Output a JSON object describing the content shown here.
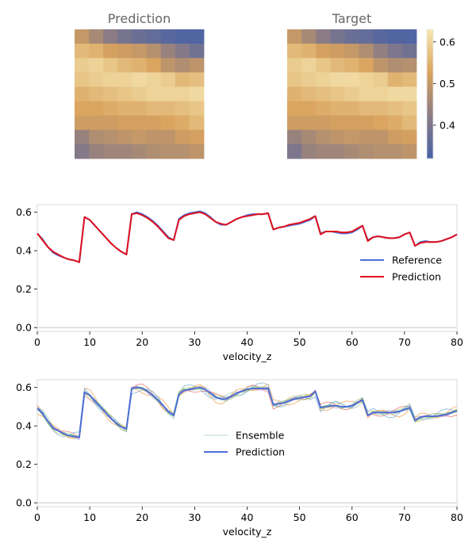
{
  "colors": {
    "reference": "#4c6ed4",
    "prediction_mid": "#e0101e",
    "prediction_bottom": "#4c6ed4",
    "frame": "#d9d9d9",
    "zero_line": "#bfbfbf",
    "title": "#666666"
  },
  "chart_data": [
    {
      "type": "heatmap",
      "title": "Prediction",
      "rows": 9,
      "cols": 9,
      "colormap": [
        "#4b63a6",
        "#8c7c84",
        "#d9a35d",
        "#f6e6b1"
      ],
      "vmin": 0.32,
      "vmax": 0.63,
      "values": [
        [
          0.5,
          0.46,
          0.42,
          0.39,
          0.37,
          0.36,
          0.34,
          0.33,
          0.33
        ],
        [
          0.56,
          0.55,
          0.52,
          0.51,
          0.5,
          0.48,
          0.44,
          0.41,
          0.38
        ],
        [
          0.59,
          0.6,
          0.58,
          0.56,
          0.55,
          0.53,
          0.49,
          0.47,
          0.49
        ],
        [
          0.58,
          0.59,
          0.6,
          0.6,
          0.61,
          0.6,
          0.59,
          0.56,
          0.57
        ],
        [
          0.55,
          0.56,
          0.57,
          0.58,
          0.59,
          0.6,
          0.6,
          0.6,
          0.61
        ],
        [
          0.53,
          0.53,
          0.54,
          0.55,
          0.55,
          0.56,
          0.56,
          0.57,
          0.58
        ],
        [
          0.51,
          0.51,
          0.51,
          0.52,
          0.52,
          0.52,
          0.53,
          0.54,
          0.56
        ],
        [
          0.44,
          0.47,
          0.48,
          0.49,
          0.5,
          0.49,
          0.49,
          0.51,
          0.52
        ],
        [
          0.41,
          0.44,
          0.45,
          0.45,
          0.46,
          0.47,
          0.48,
          0.48,
          0.49
        ]
      ]
    },
    {
      "type": "heatmap",
      "title": "Target",
      "rows": 9,
      "cols": 9,
      "colormap": [
        "#4b63a6",
        "#8c7c84",
        "#d9a35d",
        "#f6e6b1"
      ],
      "vmin": 0.32,
      "vmax": 0.63,
      "colorbar_ticks": [
        0.4,
        0.5,
        0.6
      ],
      "values": [
        [
          0.5,
          0.46,
          0.42,
          0.39,
          0.37,
          0.36,
          0.34,
          0.33,
          0.33
        ],
        [
          0.56,
          0.55,
          0.52,
          0.51,
          0.5,
          0.47,
          0.43,
          0.4,
          0.38
        ],
        [
          0.59,
          0.6,
          0.58,
          0.56,
          0.55,
          0.53,
          0.49,
          0.47,
          0.48
        ],
        [
          0.58,
          0.59,
          0.6,
          0.61,
          0.61,
          0.6,
          0.59,
          0.55,
          0.56
        ],
        [
          0.55,
          0.56,
          0.57,
          0.58,
          0.59,
          0.6,
          0.6,
          0.61,
          0.61
        ],
        [
          0.53,
          0.53,
          0.54,
          0.55,
          0.55,
          0.56,
          0.56,
          0.57,
          0.58
        ],
        [
          0.51,
          0.51,
          0.51,
          0.52,
          0.52,
          0.52,
          0.53,
          0.54,
          0.56
        ],
        [
          0.44,
          0.46,
          0.48,
          0.49,
          0.5,
          0.49,
          0.49,
          0.51,
          0.52
        ],
        [
          0.4,
          0.44,
          0.45,
          0.45,
          0.46,
          0.47,
          0.48,
          0.48,
          0.49
        ]
      ]
    },
    {
      "type": "line",
      "xlabel": "velocity_z",
      "xlim": [
        0,
        80
      ],
      "ylim": [
        -0.02,
        0.64
      ],
      "xticks": [
        0,
        10,
        20,
        30,
        40,
        50,
        60,
        70,
        80
      ],
      "yticks": [
        0.0,
        0.2,
        0.4,
        0.6
      ],
      "legend_position": "center-right",
      "x": [
        0,
        1,
        2,
        3,
        4,
        5,
        6,
        7,
        8,
        9,
        10,
        11,
        12,
        13,
        14,
        15,
        16,
        17,
        18,
        19,
        20,
        21,
        22,
        23,
        24,
        25,
        26,
        27,
        28,
        29,
        30,
        31,
        32,
        33,
        34,
        35,
        36,
        37,
        38,
        39,
        40,
        41,
        42,
        43,
        44,
        45,
        46,
        47,
        48,
        49,
        50,
        51,
        52,
        53,
        54,
        55,
        56,
        57,
        58,
        59,
        60,
        61,
        62,
        63,
        64,
        65,
        66,
        67,
        68,
        69,
        70,
        71,
        72,
        73,
        74,
        75,
        76,
        77,
        78,
        79,
        80
      ],
      "series": [
        {
          "name": "Reference",
          "values": [
            0.49,
            0.46,
            0.42,
            0.39,
            0.375,
            0.365,
            0.355,
            0.35,
            0.34,
            0.575,
            0.56,
            0.53,
            0.5,
            0.47,
            0.44,
            0.415,
            0.395,
            0.38,
            0.59,
            0.6,
            0.59,
            0.575,
            0.555,
            0.53,
            0.5,
            0.47,
            0.455,
            0.565,
            0.585,
            0.595,
            0.6,
            0.605,
            0.595,
            0.575,
            0.55,
            0.535,
            0.535,
            0.55,
            0.565,
            0.575,
            0.585,
            0.59,
            0.59,
            0.59,
            0.595,
            0.51,
            0.52,
            0.525,
            0.53,
            0.535,
            0.54,
            0.55,
            0.56,
            0.58,
            0.49,
            0.5,
            0.5,
            0.495,
            0.49,
            0.49,
            0.495,
            0.51,
            0.53,
            0.455,
            0.47,
            0.475,
            0.47,
            0.465,
            0.465,
            0.47,
            0.485,
            0.495,
            0.425,
            0.445,
            0.45,
            0.445,
            0.445,
            0.45,
            0.46,
            0.47,
            0.485
          ]
        },
        {
          "name": "Prediction",
          "values": [
            0.49,
            0.455,
            0.42,
            0.395,
            0.38,
            0.365,
            0.355,
            0.35,
            0.34,
            0.575,
            0.56,
            0.53,
            0.5,
            0.47,
            0.44,
            0.415,
            0.395,
            0.38,
            0.59,
            0.595,
            0.585,
            0.57,
            0.55,
            0.525,
            0.495,
            0.465,
            0.455,
            0.56,
            0.58,
            0.59,
            0.595,
            0.6,
            0.59,
            0.57,
            0.55,
            0.54,
            0.535,
            0.55,
            0.565,
            0.575,
            0.58,
            0.585,
            0.59,
            0.59,
            0.595,
            0.51,
            0.52,
            0.525,
            0.535,
            0.54,
            0.545,
            0.555,
            0.565,
            0.58,
            0.485,
            0.5,
            0.5,
            0.5,
            0.495,
            0.495,
            0.5,
            0.515,
            0.53,
            0.45,
            0.47,
            0.475,
            0.47,
            0.465,
            0.465,
            0.47,
            0.485,
            0.495,
            0.425,
            0.44,
            0.445,
            0.445,
            0.445,
            0.45,
            0.46,
            0.47,
            0.485
          ]
        }
      ]
    },
    {
      "type": "line",
      "xlabel": "velocity_z",
      "xlim": [
        0,
        80
      ],
      "ylim": [
        -0.02,
        0.64
      ],
      "xticks": [
        0,
        10,
        20,
        30,
        40,
        50,
        60,
        70,
        80
      ],
      "yticks": [
        0.0,
        0.2,
        0.4,
        0.6
      ],
      "legend_position": "center",
      "ensemble_members": 10,
      "ensemble_colors": [
        "#e6b0a8",
        "#c9d98a",
        "#9ecfb2",
        "#f0a35a",
        "#b6a6dc",
        "#e87a7a",
        "#7fb3d9",
        "#d9c46a",
        "#f2a0c8",
        "#8fd08a"
      ],
      "ensemble_offsets": [
        0.0,
        0.012,
        -0.014,
        0.02,
        -0.008,
        0.016,
        -0.02,
        0.006,
        -0.004,
        0.01
      ],
      "legend": [
        "Ensemble",
        "Prediction"
      ],
      "series": [
        {
          "name": "Prediction",
          "values": [
            0.49,
            0.465,
            0.425,
            0.39,
            0.375,
            0.36,
            0.35,
            0.345,
            0.34,
            0.575,
            0.56,
            0.53,
            0.5,
            0.47,
            0.44,
            0.415,
            0.395,
            0.385,
            0.595,
            0.6,
            0.595,
            0.58,
            0.56,
            0.535,
            0.505,
            0.475,
            0.455,
            0.565,
            0.585,
            0.59,
            0.595,
            0.6,
            0.59,
            0.57,
            0.55,
            0.54,
            0.54,
            0.555,
            0.57,
            0.58,
            0.59,
            0.595,
            0.595,
            0.595,
            0.595,
            0.51,
            0.515,
            0.52,
            0.53,
            0.54,
            0.545,
            0.55,
            0.555,
            0.58,
            0.495,
            0.5,
            0.505,
            0.505,
            0.5,
            0.5,
            0.505,
            0.52,
            0.535,
            0.455,
            0.47,
            0.47,
            0.47,
            0.47,
            0.47,
            0.475,
            0.485,
            0.495,
            0.43,
            0.445,
            0.45,
            0.45,
            0.45,
            0.455,
            0.46,
            0.47,
            0.48
          ]
        }
      ]
    }
  ]
}
